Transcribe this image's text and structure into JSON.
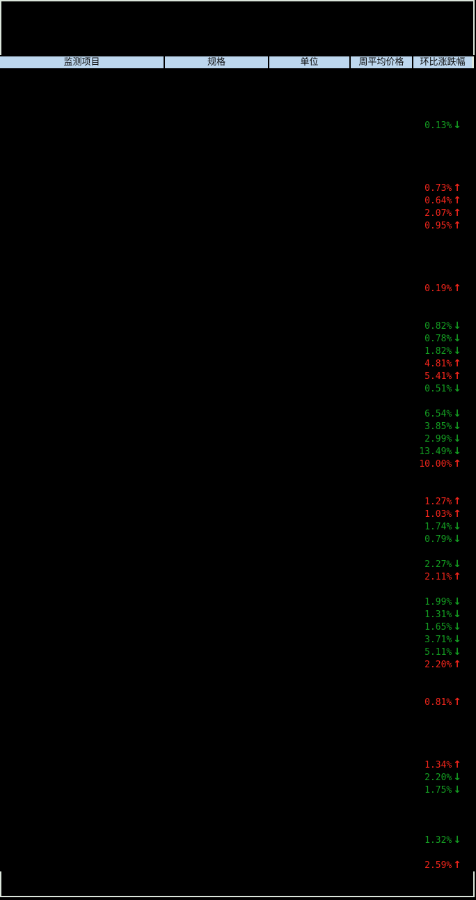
{
  "colors": {
    "background": "#000000",
    "frame_border": "#dce6dc",
    "header_bg": "#bdd7ee",
    "header_text": "#0a0a0a",
    "up_red": "#f4261c",
    "down_green": "#149e22"
  },
  "header": {
    "columns": [
      "监测项目",
      "规格",
      "单位",
      "周平均价格",
      "环比涨跌幅"
    ]
  },
  "icons": {
    "up_arrow": "↑",
    "down_arrow": "↓"
  },
  "table": {
    "row_count": 64,
    "changes": [
      {
        "row": 4,
        "value": "0.13%",
        "direction": "down"
      },
      {
        "row": 9,
        "value": "0.73%",
        "direction": "up"
      },
      {
        "row": 10,
        "value": "0.64%",
        "direction": "up"
      },
      {
        "row": 11,
        "value": "2.07%",
        "direction": "up"
      },
      {
        "row": 12,
        "value": "0.95%",
        "direction": "up"
      },
      {
        "row": 17,
        "value": "0.19%",
        "direction": "up"
      },
      {
        "row": 20,
        "value": "0.82%",
        "direction": "down"
      },
      {
        "row": 21,
        "value": "0.78%",
        "direction": "down"
      },
      {
        "row": 22,
        "value": "1.82%",
        "direction": "down"
      },
      {
        "row": 23,
        "value": "4.81%",
        "direction": "up"
      },
      {
        "row": 24,
        "value": "5.41%",
        "direction": "up"
      },
      {
        "row": 25,
        "value": "0.51%",
        "direction": "down"
      },
      {
        "row": 27,
        "value": "6.54%",
        "direction": "down"
      },
      {
        "row": 28,
        "value": "3.85%",
        "direction": "down"
      },
      {
        "row": 29,
        "value": "2.99%",
        "direction": "down"
      },
      {
        "row": 30,
        "value": "13.49%",
        "direction": "down"
      },
      {
        "row": 31,
        "value": "10.00%",
        "direction": "up"
      },
      {
        "row": 34,
        "value": "1.27%",
        "direction": "up"
      },
      {
        "row": 35,
        "value": "1.03%",
        "direction": "up"
      },
      {
        "row": 36,
        "value": "1.74%",
        "direction": "down"
      },
      {
        "row": 37,
        "value": "0.79%",
        "direction": "down"
      },
      {
        "row": 39,
        "value": "2.27%",
        "direction": "down"
      },
      {
        "row": 40,
        "value": "2.11%",
        "direction": "up"
      },
      {
        "row": 42,
        "value": "1.99%",
        "direction": "down"
      },
      {
        "row": 43,
        "value": "1.31%",
        "direction": "down"
      },
      {
        "row": 44,
        "value": "1.65%",
        "direction": "down"
      },
      {
        "row": 45,
        "value": "3.71%",
        "direction": "down"
      },
      {
        "row": 46,
        "value": "5.11%",
        "direction": "down"
      },
      {
        "row": 47,
        "value": "2.20%",
        "direction": "up"
      },
      {
        "row": 50,
        "value": "0.81%",
        "direction": "up"
      },
      {
        "row": 55,
        "value": "1.34%",
        "direction": "up"
      },
      {
        "row": 56,
        "value": "2.20%",
        "direction": "down"
      },
      {
        "row": 57,
        "value": "1.75%",
        "direction": "down"
      },
      {
        "row": 61,
        "value": "1.32%",
        "direction": "down"
      },
      {
        "row": 63,
        "value": "2.59%",
        "direction": "up"
      }
    ]
  }
}
